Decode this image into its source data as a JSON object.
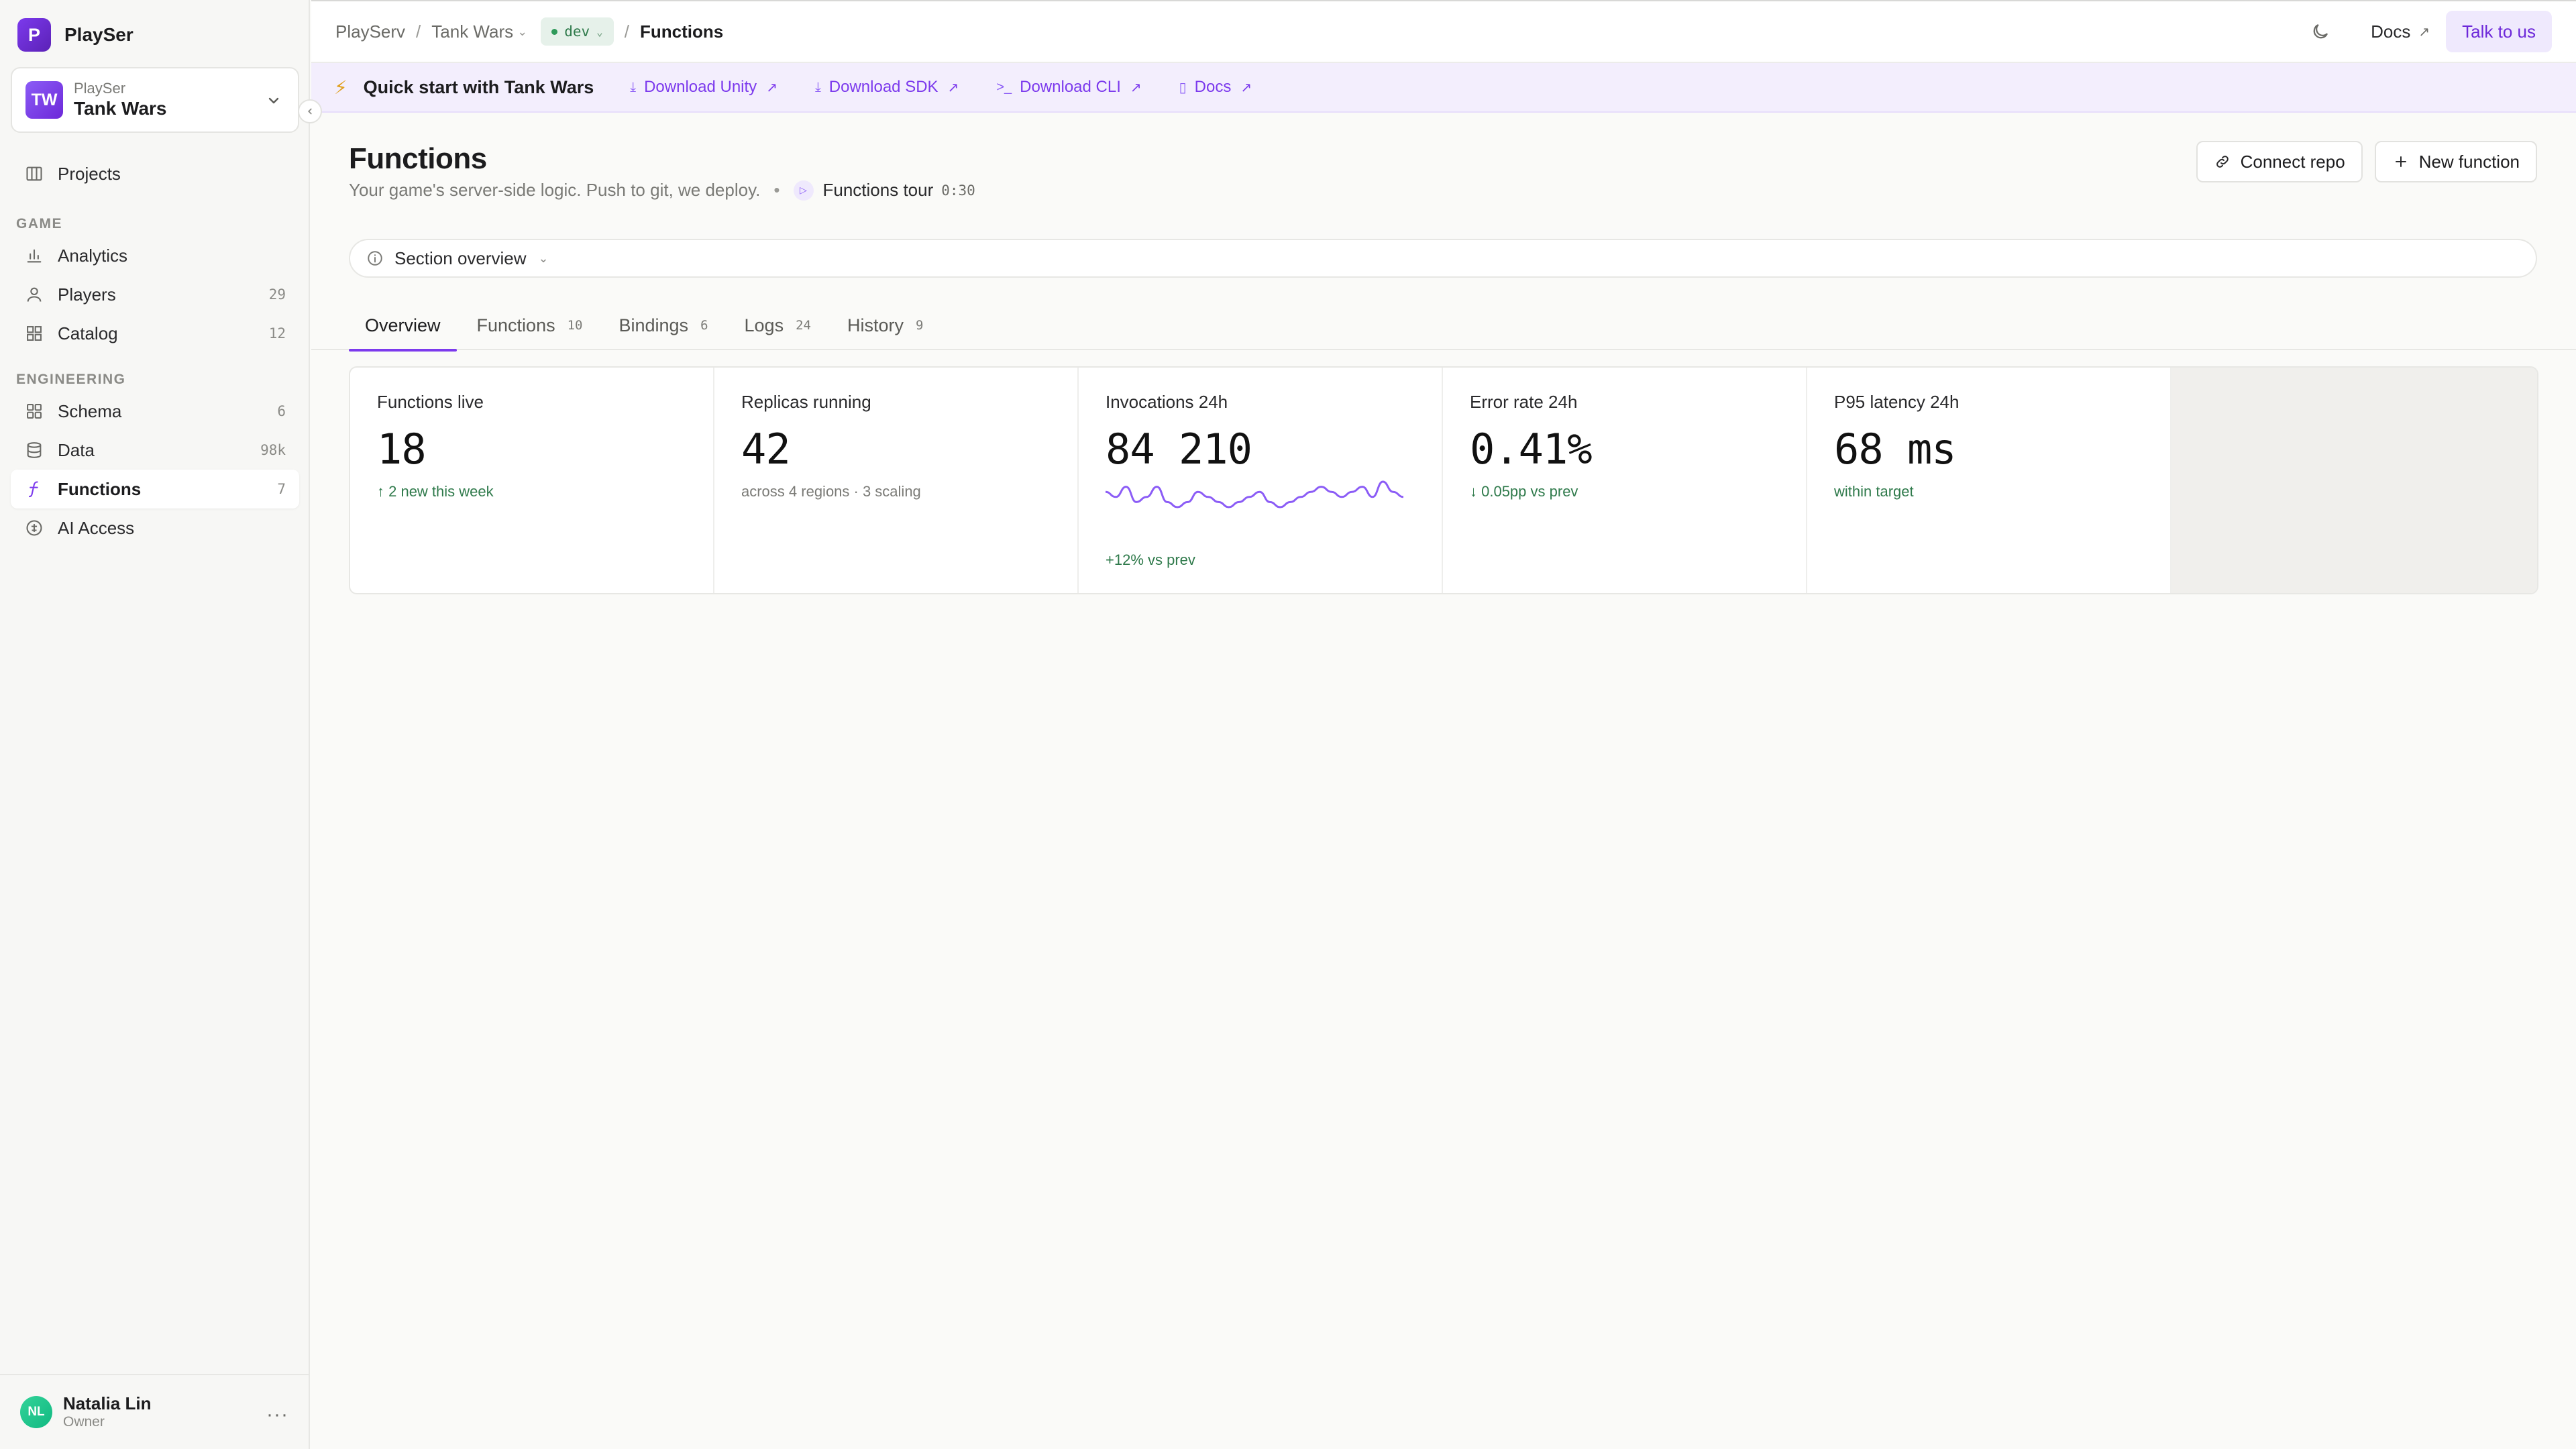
{
  "app": {
    "brand_initial": "P",
    "brand_name": "PlaySer"
  },
  "project": {
    "initials": "TW",
    "org": "PlaySer",
    "name": "Tank Wars"
  },
  "sidebar": {
    "top_items": [
      {
        "label": "Projects",
        "icon": "projects-icon"
      }
    ],
    "game_section": "GAME",
    "game_items": [
      {
        "label": "Analytics",
        "icon": "analytics-icon",
        "count": ""
      },
      {
        "label": "Players",
        "icon": "players-icon",
        "count": "29"
      },
      {
        "label": "Catalog",
        "icon": "catalog-icon",
        "count": "12"
      }
    ],
    "eng_section": "ENGINEERING",
    "eng_items": [
      {
        "label": "Schema",
        "icon": "schema-icon",
        "count": "6"
      },
      {
        "label": "Data",
        "icon": "data-icon",
        "count": "98k"
      },
      {
        "label": "Functions",
        "icon": "functions-icon",
        "count": "7",
        "active": true
      },
      {
        "label": "AI Access",
        "icon": "ai-access-icon",
        "count": ""
      }
    ]
  },
  "user": {
    "initials": "NL",
    "name": "Natalia Lin",
    "role": "Owner"
  },
  "topbar": {
    "crumbs": [
      "PlayServ",
      "Tank Wars",
      "Functions"
    ],
    "env": "dev",
    "docs_label": "Docs",
    "talk_label": "Talk to us"
  },
  "banner": {
    "title": "Quick start with Tank Wars",
    "links": [
      "Download Unity",
      "Download SDK",
      "Download CLI",
      "Docs"
    ]
  },
  "page": {
    "title": "Functions",
    "subtitle": "Your game's server-side logic. Push to git, we deploy.",
    "tour_label": "Functions tour",
    "tour_time": "0:30",
    "connect_label": "Connect repo",
    "new_label": "New function",
    "section_overview": "Section overview"
  },
  "tabs": [
    {
      "label": "Overview",
      "count": "",
      "active": true
    },
    {
      "label": "Functions",
      "count": "10"
    },
    {
      "label": "Bindings",
      "count": "6"
    },
    {
      "label": "Logs",
      "count": "24"
    },
    {
      "label": "History",
      "count": "9"
    }
  ],
  "stats": [
    {
      "label": "Functions live",
      "value": "18",
      "note": "↑ 2 new this week",
      "tone": "good"
    },
    {
      "label": "Replicas running",
      "value": "42",
      "note": "across 4 regions · 3 scaling",
      "tone": "muted"
    },
    {
      "label": "Invocations 24h",
      "value": "84 210",
      "foot": "+12% vs prev",
      "spark": [
        5,
        4,
        6,
        3,
        4,
        6,
        3,
        2,
        3,
        5,
        4,
        3,
        2,
        3,
        4,
        5,
        3,
        2,
        3,
        4,
        5,
        6,
        5,
        4,
        5,
        6,
        4,
        7,
        5,
        4
      ]
    },
    {
      "label": "Error rate 24h",
      "value": "0.41%",
      "note": "↓ 0.05pp vs prev",
      "tone": "good"
    },
    {
      "label": "P95 latency 24h",
      "value": "68 ms",
      "note": "within target",
      "tone": "good"
    }
  ],
  "colors": {
    "accent": "#7c3aed",
    "good": "#2f7a4b",
    "banner_bg": "#f3eefd"
  }
}
